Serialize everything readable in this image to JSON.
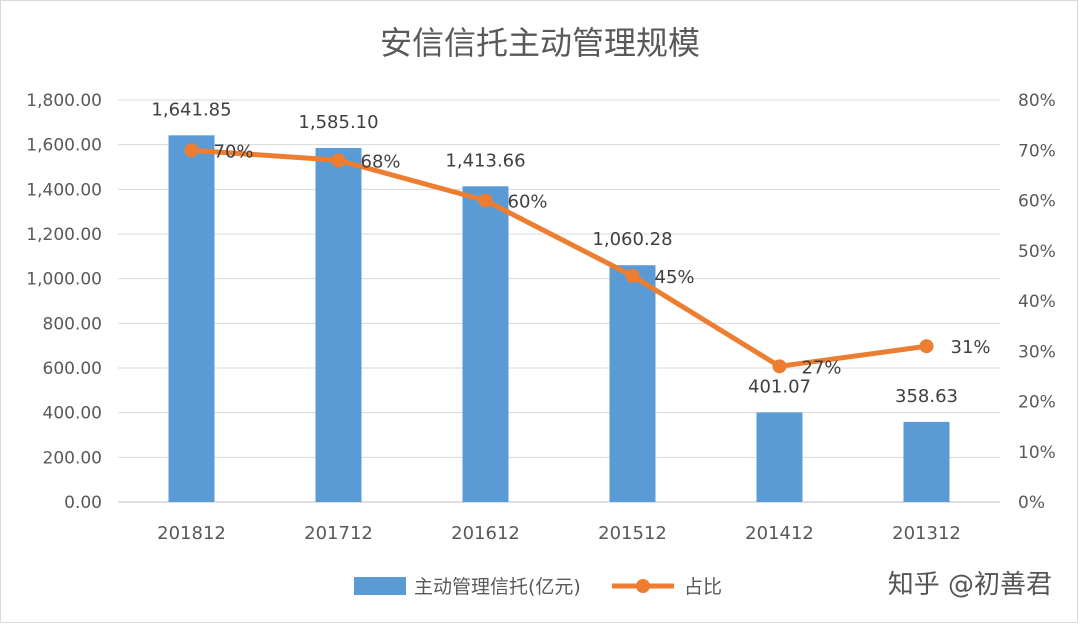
{
  "chart_data": {
    "type": "bar",
    "title": "安信信托主动管理规模",
    "categories": [
      "201812",
      "201712",
      "201612",
      "201512",
      "201412",
      "201312"
    ],
    "series": [
      {
        "name": "主动管理信托(亿元)",
        "type": "bar",
        "axis": "left",
        "color": "#5b9bd5",
        "values": [
          1641.85,
          1585.1,
          1413.66,
          1060.28,
          401.07,
          358.63
        ],
        "labels": [
          "1,641.85",
          "1,585.10",
          "1,413.66",
          "1,060.28",
          "401.07",
          "358.63"
        ]
      },
      {
        "name": "占比",
        "type": "line",
        "axis": "right",
        "color": "#ed7d31",
        "values": [
          70,
          68,
          60,
          45,
          27,
          31
        ],
        "labels": [
          "70%",
          "68%",
          "60%",
          "45%",
          "27%",
          "31%"
        ]
      }
    ],
    "y_left": {
      "range": [
        0,
        1800
      ],
      "ticks": [
        "0.00",
        "200.00",
        "400.00",
        "600.00",
        "800.00",
        "1,000.00",
        "1,200.00",
        "1,400.00",
        "1,600.00",
        "1,800.00"
      ]
    },
    "y_right": {
      "range": [
        0,
        80
      ],
      "ticks": [
        "0%",
        "10%",
        "20%",
        "30%",
        "40%",
        "50%",
        "60%",
        "70%",
        "80%"
      ]
    },
    "grid": true,
    "legend_position": "bottom"
  },
  "watermark": "知乎 @初善君"
}
